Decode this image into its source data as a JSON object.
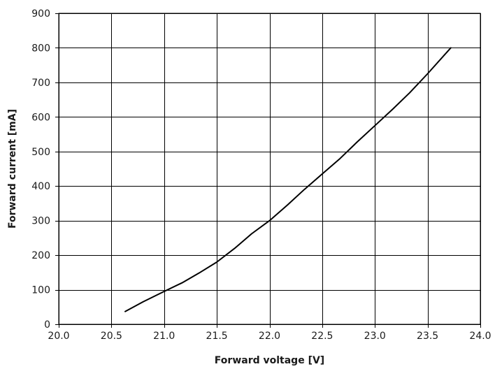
{
  "chart_data": {
    "type": "line",
    "title": "",
    "xlabel": "Forward voltage [V]",
    "ylabel": "Forward current [mA]",
    "xlim": [
      20.0,
      24.0
    ],
    "ylim": [
      0,
      900
    ],
    "x_ticks": [
      20.0,
      20.5,
      21.0,
      21.5,
      22.0,
      22.5,
      23.0,
      23.5,
      24.0
    ],
    "x_tick_labels": [
      "20.0",
      "20.5",
      "21.0",
      "21.5",
      "22.0",
      "22.5",
      "23.0",
      "23.5",
      "24.0"
    ],
    "y_ticks": [
      0,
      100,
      200,
      300,
      400,
      500,
      600,
      700,
      800,
      900
    ],
    "y_tick_labels": [
      "0",
      "100",
      "200",
      "300",
      "400",
      "500",
      "600",
      "700",
      "800",
      "900"
    ],
    "grid": true,
    "legend": "none",
    "line_color": "#000000",
    "series": [
      {
        "x": [
          20.63,
          20.8,
          21.0,
          21.17,
          21.33,
          21.5,
          21.67,
          21.83,
          22.0,
          22.17,
          22.33,
          22.5,
          22.67,
          22.83,
          23.0,
          23.17,
          23.33,
          23.5,
          23.72
        ],
        "y": [
          37,
          65,
          95,
          120,
          148,
          180,
          220,
          262,
          300,
          345,
          390,
          435,
          480,
          527,
          575,
          623,
          670,
          725,
          800
        ]
      }
    ]
  }
}
